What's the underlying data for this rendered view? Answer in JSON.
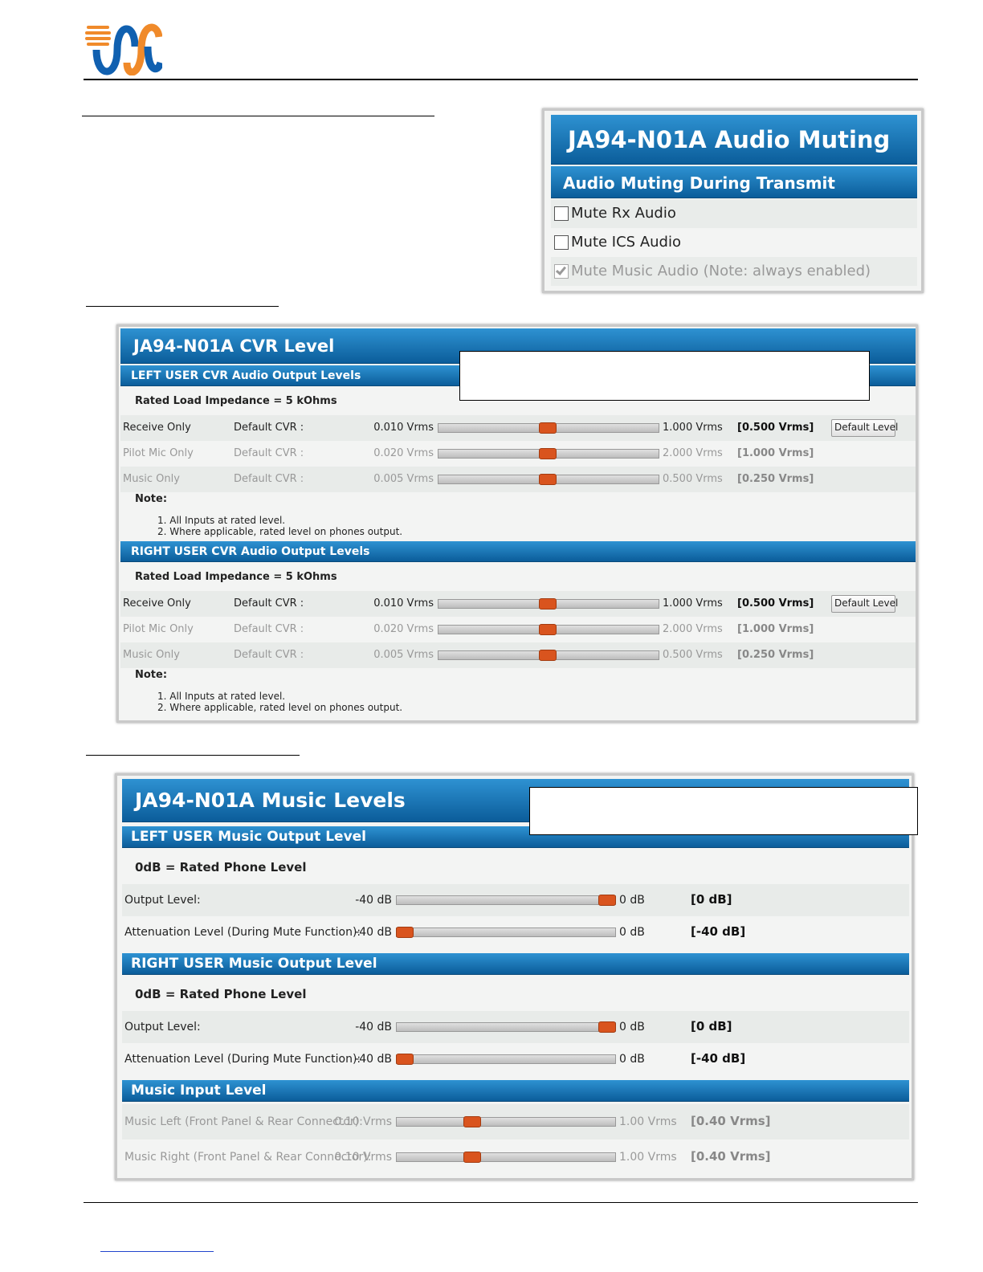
{
  "audio_muting": {
    "title": "JA94-N01A Audio Muting",
    "section": "Audio Muting During Transmit",
    "options": [
      {
        "label": "Mute Rx Audio",
        "checked": false,
        "enabled": true
      },
      {
        "label": "Mute ICS Audio",
        "checked": false,
        "enabled": true
      },
      {
        "label": "Mute Music Audio (Note: always enabled)",
        "checked": true,
        "enabled": false
      }
    ]
  },
  "cvr_level": {
    "title": "JA94-N01A CVR Level",
    "groups": [
      {
        "heading": "LEFT USER CVR Audio Output Levels",
        "impedance": "Rated Load Impedance = 5 kOhms",
        "rows": [
          {
            "name": "Receive Only",
            "default_label": "Default CVR :",
            "min_label": "0.010 Vrms",
            "max_label": "1.000 Vrms",
            "value_label": "[0.500 Vrms]",
            "min": 0.01,
            "max": 1,
            "value": 0.5,
            "enabled": true,
            "button": "Default Level"
          },
          {
            "name": "Pilot Mic Only",
            "default_label": "Default CVR :",
            "min_label": "0.020 Vrms",
            "max_label": "2.000 Vrms",
            "value_label": "[1.000 Vrms]",
            "min": 0.02,
            "max": 2,
            "value": 1,
            "enabled": false
          },
          {
            "name": "Music Only",
            "default_label": "Default CVR :",
            "min_label": "0.005 Vrms",
            "max_label": "0.500 Vrms",
            "value_label": "[0.250 Vrms]",
            "min": 0.005,
            "max": 0.5,
            "value": 0.25,
            "enabled": false
          }
        ],
        "note_title": "Note:",
        "notes": [
          "1. All Inputs at rated level.",
          "2. Where applicable, rated level on phones output."
        ]
      },
      {
        "heading": "RIGHT USER CVR Audio Output Levels",
        "impedance": "Rated Load Impedance = 5 kOhms",
        "rows": [
          {
            "name": "Receive Only",
            "default_label": "Default CVR :",
            "min_label": "0.010 Vrms",
            "max_label": "1.000 Vrms",
            "value_label": "[0.500 Vrms]",
            "min": 0.01,
            "max": 1,
            "value": 0.5,
            "enabled": true,
            "button": "Default Level"
          },
          {
            "name": "Pilot Mic Only",
            "default_label": "Default CVR :",
            "min_label": "0.020 Vrms",
            "max_label": "2.000 Vrms",
            "value_label": "[1.000 Vrms]",
            "min": 0.02,
            "max": 2,
            "value": 1,
            "enabled": false
          },
          {
            "name": "Music Only",
            "default_label": "Default CVR :",
            "min_label": "0.005 Vrms",
            "max_label": "0.500 Vrms",
            "value_label": "[0.250 Vrms]",
            "min": 0.005,
            "max": 0.5,
            "value": 0.25,
            "enabled": false
          }
        ],
        "note_title": "Note:",
        "notes": [
          "1. All Inputs at rated level.",
          "2. Where applicable, rated level on phones output."
        ]
      }
    ]
  },
  "music_levels": {
    "title": "JA94-N01A Music Levels",
    "groups": [
      {
        "heading": "LEFT USER Music Output Level",
        "subtitle": "0dB = Rated Phone Level",
        "rows": [
          {
            "name": "Output Level:",
            "min_label": "-40 dB",
            "max_label": "0 dB",
            "value_label": "[0 dB]",
            "min": -40,
            "max": 0,
            "value": 0,
            "enabled": true
          },
          {
            "name": "Attenuation Level (During Mute Function):",
            "min_label": "-40 dB",
            "max_label": "0 dB",
            "value_label": "[-40 dB]",
            "min": -40,
            "max": 0,
            "value": -40,
            "enabled": true
          }
        ]
      },
      {
        "heading": "RIGHT USER Music Output Level",
        "subtitle": "0dB = Rated Phone Level",
        "rows": [
          {
            "name": "Output Level:",
            "min_label": "-40 dB",
            "max_label": "0 dB",
            "value_label": "[0 dB]",
            "min": -40,
            "max": 0,
            "value": 0,
            "enabled": true
          },
          {
            "name": "Attenuation Level (During Mute Function):",
            "min_label": "-40 dB",
            "max_label": "0 dB",
            "value_label": "[-40 dB]",
            "min": -40,
            "max": 0,
            "value": -40,
            "enabled": true
          }
        ]
      },
      {
        "heading": "Music Input Level",
        "rows": [
          {
            "name": "Music Left (Front Panel & Rear Connector):",
            "min_label": "0.10 Vrms",
            "max_label": "1.00 Vrms",
            "value_label": "[0.40 Vrms]",
            "min": 0.1,
            "max": 1,
            "value": 0.4,
            "enabled": false
          },
          {
            "name": "Music Right (Front Panel & Rear Connector):",
            "min_label": "0.10 Vrms",
            "max_label": "1.00 Vrms",
            "value_label": "[0.40 Vrms]",
            "min": 0.1,
            "max": 1,
            "value": 0.4,
            "enabled": false
          }
        ]
      }
    ]
  }
}
